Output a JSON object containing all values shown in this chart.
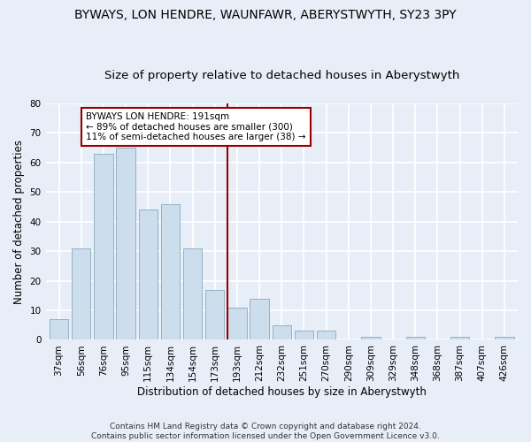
{
  "title": "BYWAYS, LON HENDRE, WAUNFAWR, ABERYSTWYTH, SY23 3PY",
  "subtitle": "Size of property relative to detached houses in Aberystwyth",
  "xlabel": "Distribution of detached houses by size in Aberystwyth",
  "ylabel": "Number of detached properties",
  "categories": [
    "37sqm",
    "56sqm",
    "76sqm",
    "95sqm",
    "115sqm",
    "134sqm",
    "154sqm",
    "173sqm",
    "193sqm",
    "212sqm",
    "232sqm",
    "251sqm",
    "270sqm",
    "290sqm",
    "309sqm",
    "329sqm",
    "348sqm",
    "368sqm",
    "387sqm",
    "407sqm",
    "426sqm"
  ],
  "values": [
    7,
    31,
    63,
    65,
    44,
    46,
    31,
    17,
    11,
    14,
    5,
    3,
    3,
    0,
    1,
    0,
    1,
    0,
    1,
    0,
    1
  ],
  "bar_color": "#ccdded",
  "bar_edge_color": "#8aaabb",
  "vline_x_index": 8,
  "vline_color": "#990000",
  "annotation_line1": "BYWAYS LON HENDRE: 191sqm",
  "annotation_line2": "← 89% of detached houses are smaller (300)",
  "annotation_line3": "11% of semi-detached houses are larger (38) →",
  "annotation_box_color": "white",
  "annotation_box_edge_color": "#990000",
  "ylim": [
    0,
    80
  ],
  "yticks": [
    0,
    10,
    20,
    30,
    40,
    50,
    60,
    70,
    80
  ],
  "background_color": "#e8eef8",
  "grid_color": "white",
  "footer": "Contains HM Land Registry data © Crown copyright and database right 2024.\nContains public sector information licensed under the Open Government Licence v3.0.",
  "title_fontsize": 10,
  "subtitle_fontsize": 9.5,
  "xlabel_fontsize": 8.5,
  "ylabel_fontsize": 8.5,
  "tick_fontsize": 7.5,
  "annotation_fontsize": 7.5,
  "footer_fontsize": 6.5
}
